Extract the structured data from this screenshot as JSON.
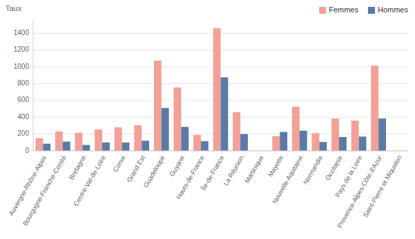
{
  "chart_data": {
    "type": "bar",
    "categories": [
      "Auvergne-Rhône-Alpes",
      "Bourgogne-Franche-Comté",
      "Bretagne",
      "Centre-Val-de-Loire",
      "Corse",
      "Grand Est",
      "Guadeloupe",
      "Guyane",
      "Hauts-de-France",
      "Île-de-France",
      "La Réunion",
      "Martinique",
      "Mayotte",
      "Nouvelle Aquitaine",
      "Normandie",
      "Occitanie",
      "Pays de la Loire",
      "Provence-Alpes-Côte d'Azur",
      "Saint-Pierre et Miquelon"
    ],
    "series": [
      {
        "name": "Femmes",
        "color": "#F4A097",
        "values": [
          150,
          230,
          215,
          255,
          280,
          305,
          1075,
          755,
          190,
          1460,
          460,
          0,
          175,
          525,
          210,
          385,
          360,
          1015,
          0
        ]
      },
      {
        "name": "Hommes",
        "color": "#5B7BA6",
        "values": [
          85,
          110,
          70,
          100,
          100,
          120,
          510,
          285,
          115,
          875,
          200,
          0,
          225,
          240,
          105,
          165,
          170,
          385,
          0
        ]
      }
    ],
    "ylabel": "Taux",
    "ylim": [
      0,
      1550
    ],
    "yticks": [
      0,
      200,
      400,
      600,
      800,
      1000,
      1200,
      1400
    ],
    "grid": true,
    "legend": "upper right"
  }
}
